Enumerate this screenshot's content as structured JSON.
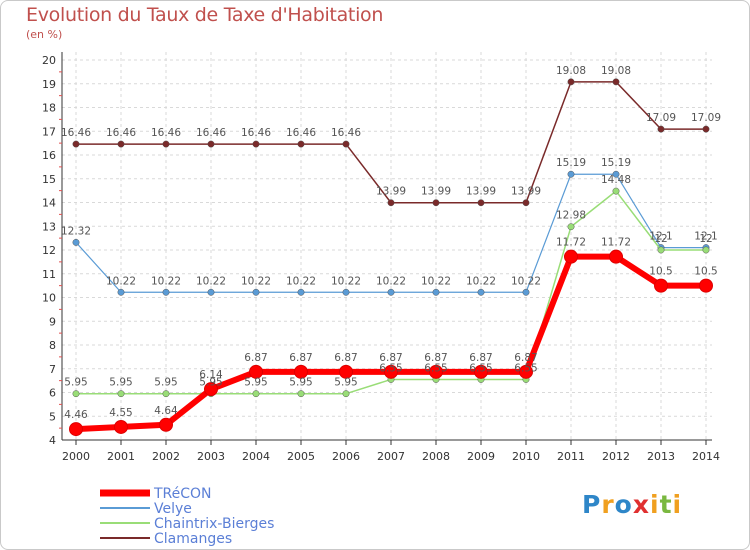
{
  "title": "Evolution du Taux de Taxe d'Habitation",
  "subtitle": "(en %)",
  "logo": {
    "text": "Proxiti",
    "colors": [
      "#2e86c8",
      "#f0a020",
      "#2e86c8",
      "#e03030",
      "#f0a020",
      "#7ab840",
      "#f0a020"
    ]
  },
  "chart_data": {
    "type": "line",
    "x": [
      "2000",
      "2001",
      "2002",
      "2003",
      "2004",
      "2005",
      "2006",
      "2007",
      "2008",
      "2009",
      "2010",
      "2011",
      "2012",
      "2013",
      "2014"
    ],
    "ylim": [
      4,
      20
    ],
    "yticks": [
      4,
      5,
      6,
      7,
      8,
      9,
      10,
      11,
      12,
      13,
      14,
      15,
      16,
      17,
      18,
      19,
      20
    ],
    "grid": true,
    "legend_position": "bottom-left",
    "series": [
      {
        "name": "Clamanges",
        "color": "#7a2a2a",
        "width": 1.5,
        "values": [
          16.46,
          16.46,
          16.46,
          16.46,
          16.46,
          16.46,
          16.46,
          13.99,
          13.99,
          13.99,
          13.99,
          19.08,
          19.08,
          17.09,
          17.09
        ],
        "labels": [
          "16.46",
          "16.46",
          "16.46",
          "16.46",
          "16.46",
          "16.46",
          "16.46",
          "13.99",
          "13.99",
          "13.99",
          "13.99",
          "19.08",
          "19.08",
          "17.09",
          "17.09"
        ]
      },
      {
        "name": "Velye",
        "color": "#5a9bd5",
        "width": 1.2,
        "values": [
          12.32,
          10.22,
          10.22,
          10.22,
          10.22,
          10.22,
          10.22,
          10.22,
          10.22,
          10.22,
          10.22,
          15.19,
          15.19,
          12.1,
          12.1
        ],
        "labels": [
          "12.32",
          "10.22",
          "10.22",
          "10.22",
          "10.22",
          "10.22",
          "10.22",
          "10.22",
          "10.22",
          "10.22",
          "10.22",
          "15.19",
          "15.19",
          "12.1",
          "12.1"
        ]
      },
      {
        "name": "Chaintrix-Bierges",
        "color": "#99dd77",
        "width": 1.5,
        "values": [
          5.95,
          5.95,
          5.95,
          5.95,
          5.95,
          5.95,
          5.95,
          6.55,
          6.55,
          6.55,
          6.55,
          12.98,
          14.48,
          12,
          12
        ],
        "labels": [
          "5.95",
          "5.95",
          "5.95",
          "5.95",
          "5.95",
          "5.95",
          "5.95",
          "6.55",
          "6.55",
          "6.55",
          "6.55",
          "12.98",
          "14.48",
          "12",
          "12"
        ]
      },
      {
        "name": "TRéCON",
        "color": "#ff0000",
        "width": 6,
        "values": [
          4.46,
          4.55,
          4.64,
          6.14,
          6.87,
          6.87,
          6.87,
          6.87,
          6.87,
          6.87,
          6.87,
          11.72,
          11.72,
          10.5,
          10.5
        ],
        "labels": [
          "4.46",
          "4.55",
          "4.64",
          "6.14",
          "6.87",
          "6.87",
          "6.87",
          "6.87",
          "6.87",
          "6.87",
          "6.87",
          "11.72",
          "11.72",
          "10.5",
          "10.5"
        ]
      }
    ]
  }
}
